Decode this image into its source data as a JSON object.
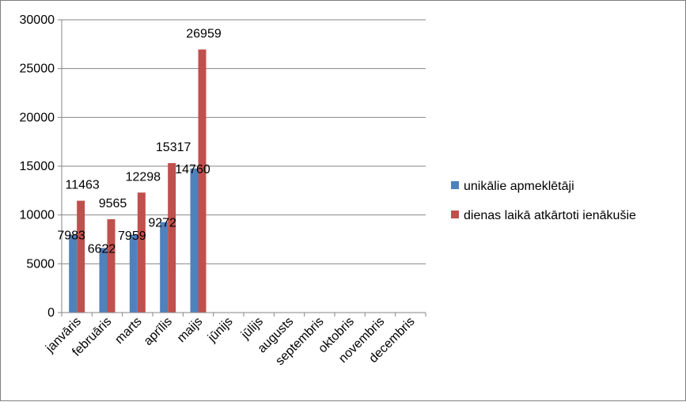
{
  "chart_data": {
    "type": "bar",
    "categories": [
      "janvāris",
      "februāris",
      "marts",
      "aprīlis",
      "maijs",
      "jūnijs",
      "jūlijs",
      "augusts",
      "septembris",
      "oktobris",
      "novembris",
      "decembris"
    ],
    "series": [
      {
        "name": "unikālie apmeklētāji",
        "color": "#4f81bd",
        "values": [
          7983,
          6622,
          7959,
          9272,
          14760,
          null,
          null,
          null,
          null,
          null,
          null,
          null
        ]
      },
      {
        "name": "dienas laikā atkārtoti ienākušie",
        "color": "#c0504d",
        "values": [
          11463,
          9565,
          12298,
          15317,
          26959,
          null,
          null,
          null,
          null,
          null,
          null,
          null
        ]
      }
    ],
    "ylim": [
      0,
      30000
    ],
    "yticks": [
      0,
      5000,
      10000,
      15000,
      20000,
      25000,
      30000
    ],
    "grid": true,
    "legend": "right",
    "xlabel": "",
    "ylabel": "",
    "title": ""
  }
}
